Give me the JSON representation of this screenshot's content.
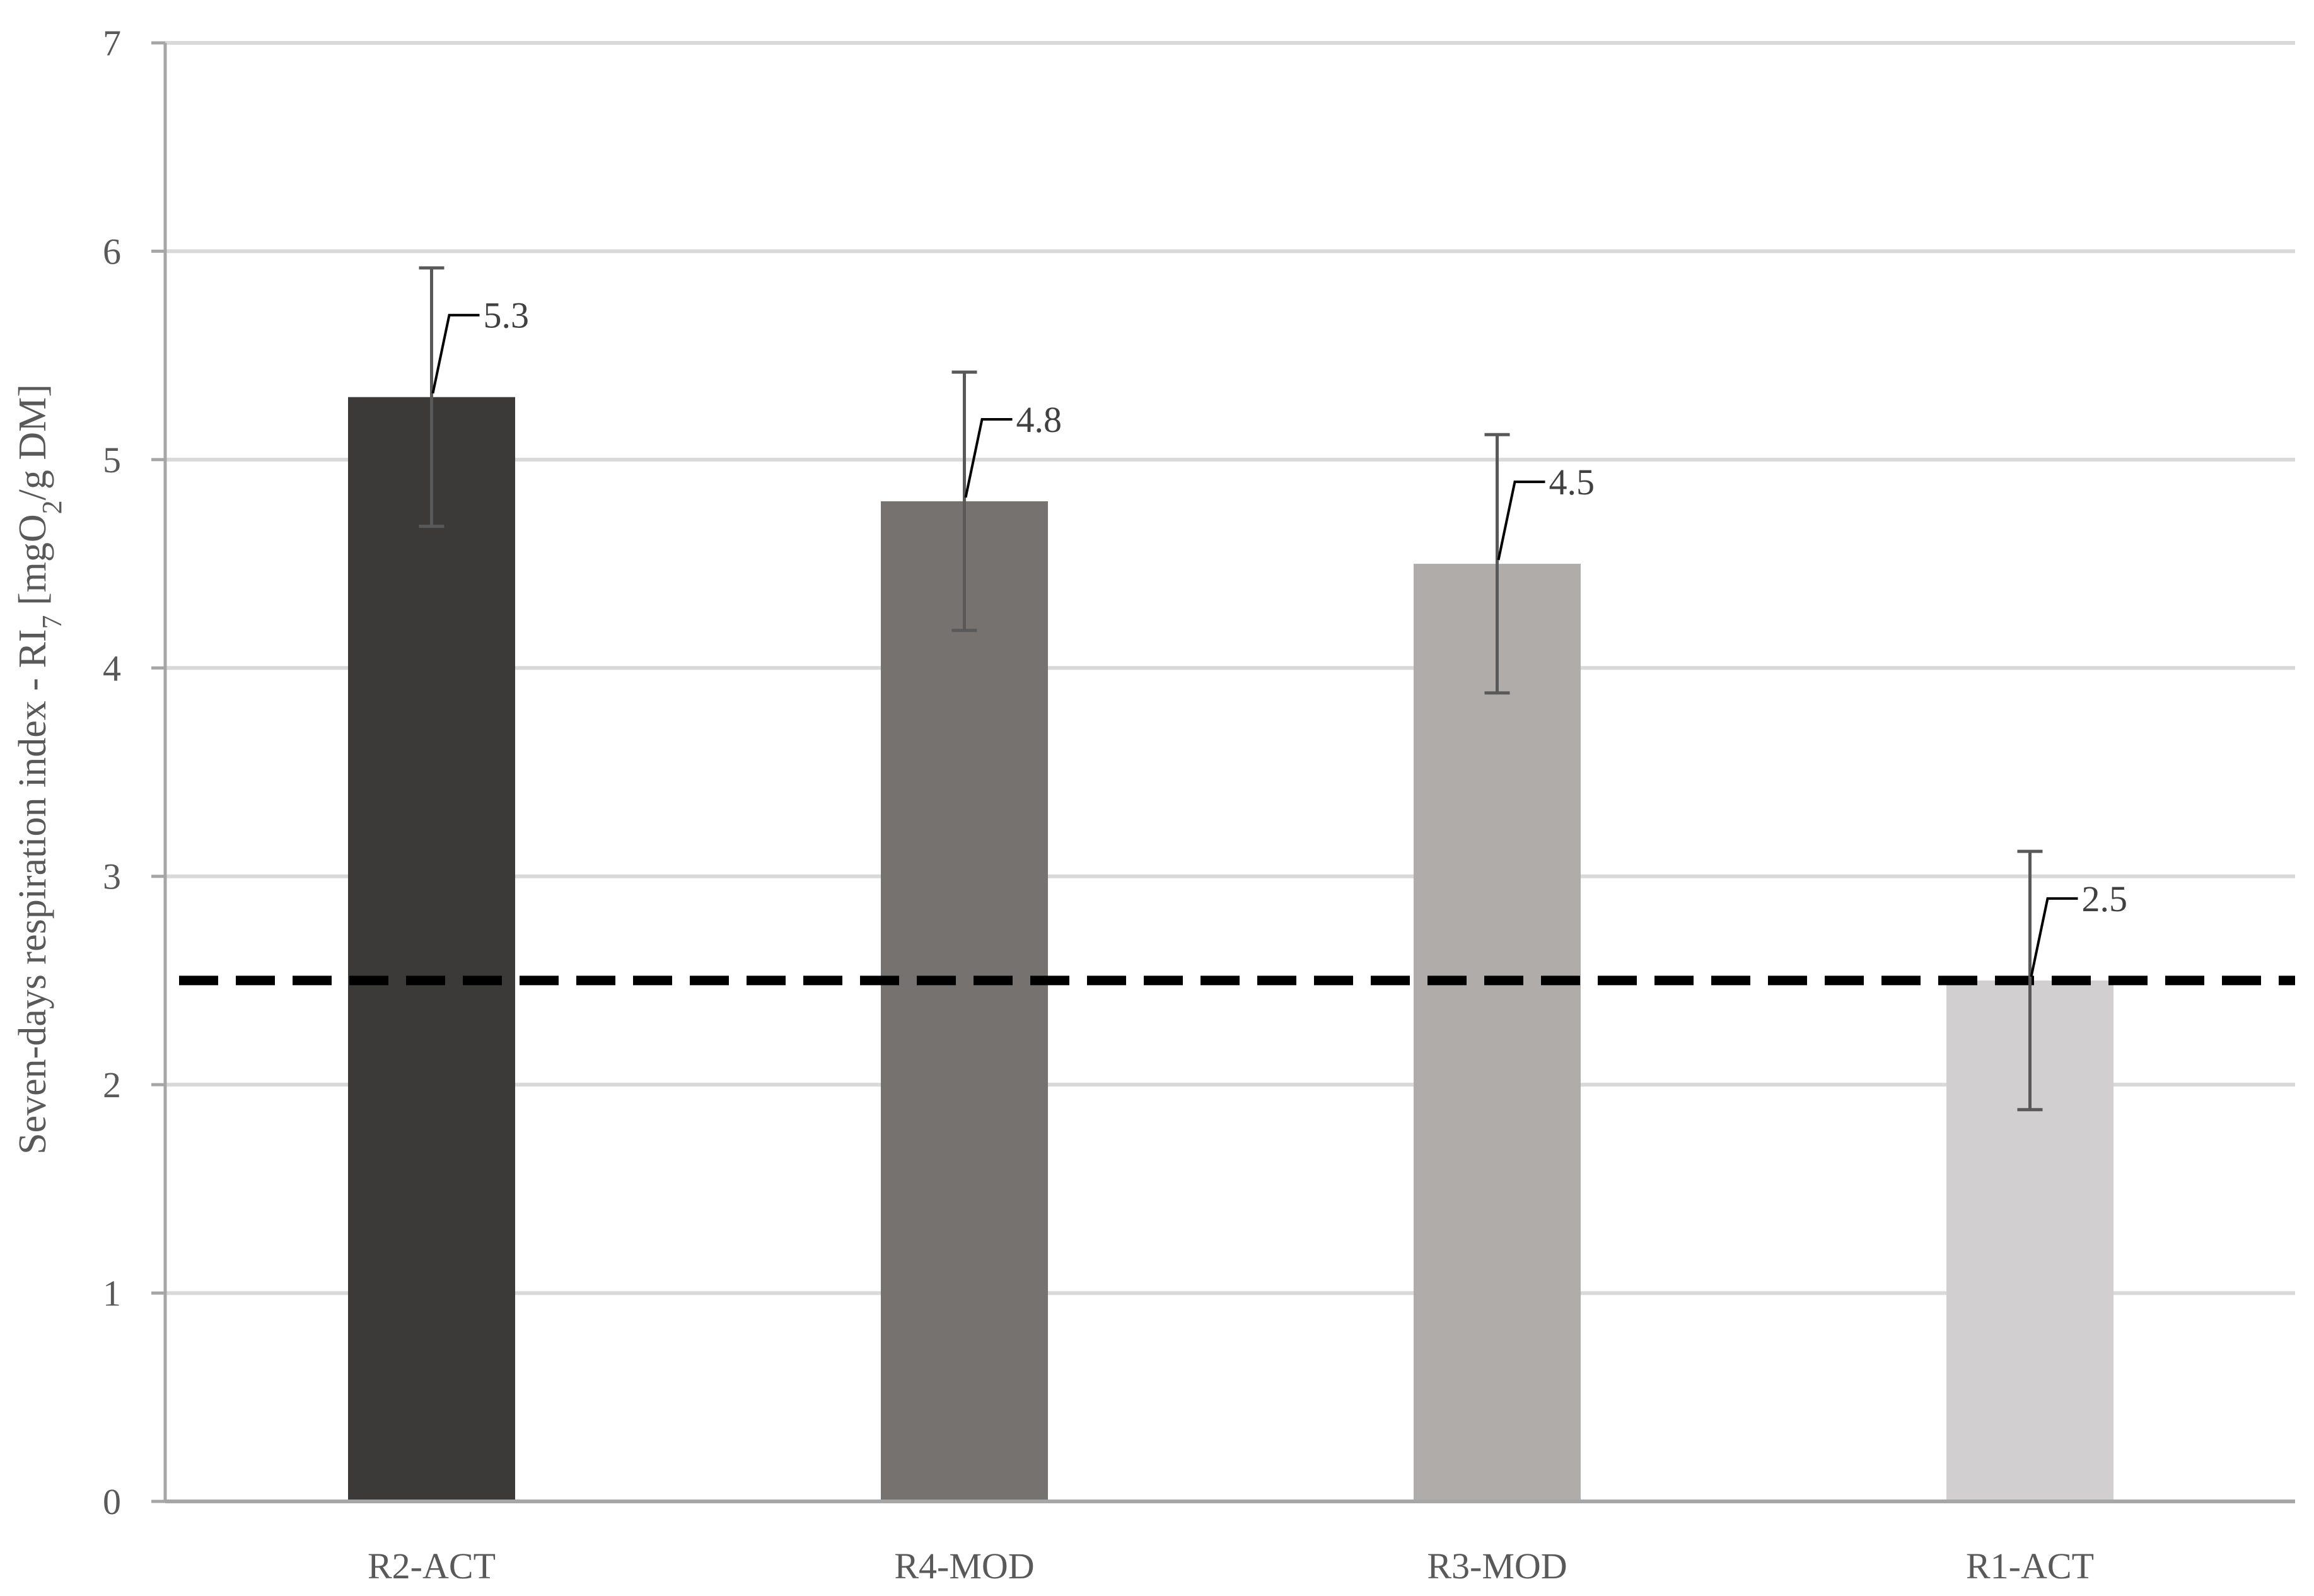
{
  "chart_data": {
    "type": "bar",
    "categories": [
      "R2-ACT",
      "R4-MOD",
      "R3-MOD",
      "R1-ACT"
    ],
    "values": [
      5.3,
      4.8,
      4.5,
      2.5
    ],
    "error": [
      0.62,
      0.62,
      0.62,
      0.62
    ],
    "data_labels": [
      "5.3",
      "4.8",
      "4.5",
      "2.5"
    ],
    "colors": [
      "#3b3a38",
      "#76726f",
      "#b0acaa",
      "#d1cfcf"
    ],
    "threshold": 2.5,
    "ylim": [
      0,
      7
    ],
    "yticks": [
      0,
      1,
      2,
      3,
      4,
      5,
      6,
      7
    ],
    "ylabel": {
      "main": "Seven-days respiration index - RI",
      "sub7": "7",
      "mid": " [mgO",
      "sub2": "2",
      "end": "/g DM]"
    },
    "xlabel": "",
    "title": "",
    "grid": true
  }
}
